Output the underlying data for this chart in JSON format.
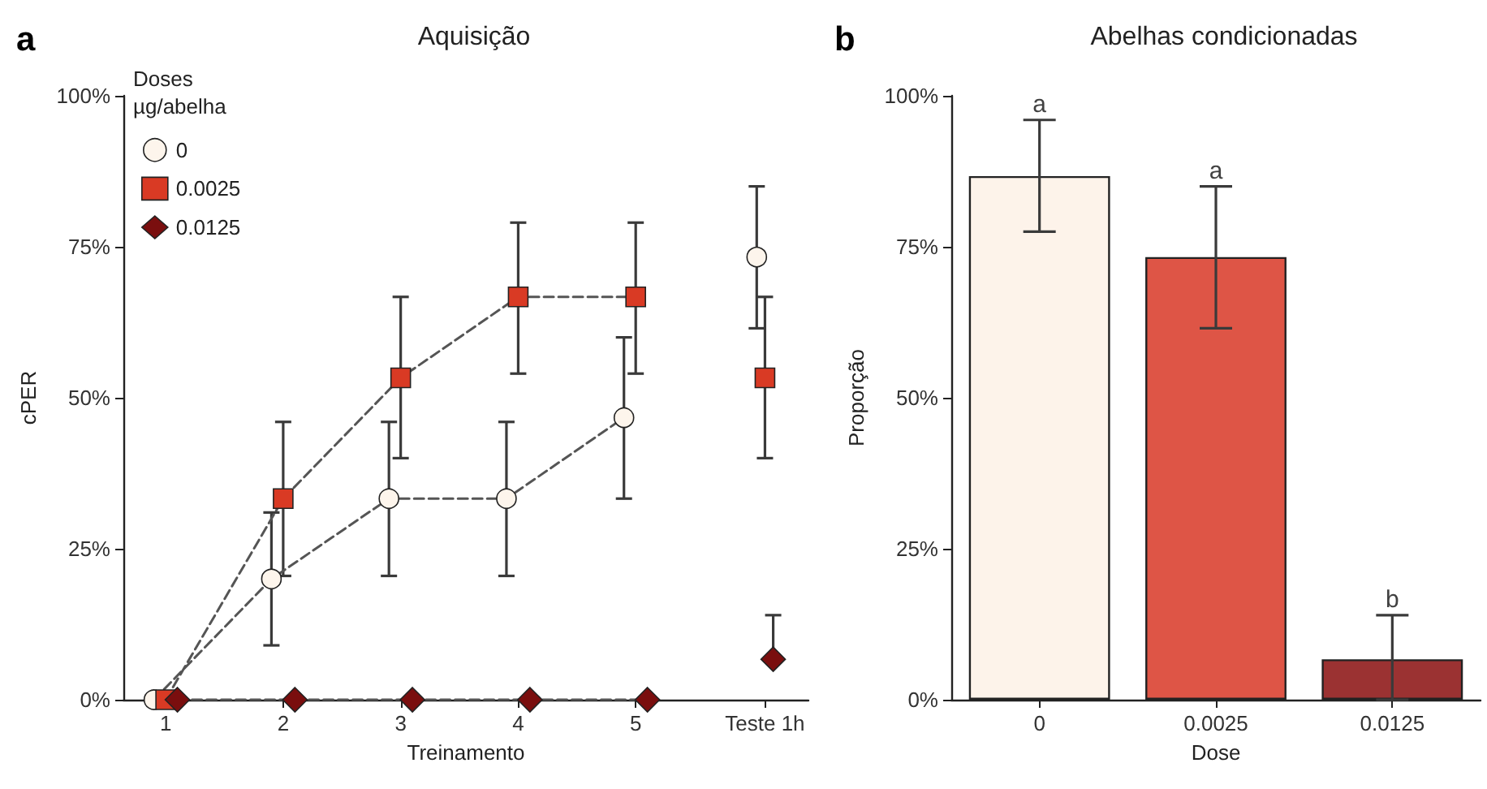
{
  "chart_data": [
    {
      "type": "line",
      "title": "Aquisição",
      "xlabel": "Treinamento",
      "ylabel": "cPER",
      "legend_title": "Doses\nµg/abelha",
      "annotations": [
        "a"
      ],
      "xlim": [
        0.64,
        6.47
      ],
      "xticks": [
        1,
        2,
        3,
        4,
        5,
        {
          "value": 6.1,
          "label": "Teste 1h"
        }
      ],
      "ylim": [
        0,
        100
      ],
      "yticks": [
        {
          "value": 0,
          "label": "0%"
        },
        {
          "value": 25,
          "label": "25%"
        },
        {
          "value": 50,
          "label": "50%"
        },
        {
          "value": 75,
          "label": "75%"
        },
        {
          "value": 100,
          "label": "100%"
        }
      ],
      "grid": false,
      "legend": "top left",
      "line_style": "dashed",
      "series": [
        {
          "name": "0",
          "color": "#fdf5ec",
          "marker": "circle",
          "x": [
            0.9,
            1.9,
            2.9,
            3.9,
            4.9,
            5.55,
            6.03
          ],
          "values": [
            0,
            20,
            33.3,
            33.3,
            46.7,
            null,
            73.3
          ],
          "errors": [
            null,
            [
              9,
              31
            ],
            [
              20.5,
              46
            ],
            [
              20.5,
              46
            ],
            [
              33.3,
              60
            ],
            null,
            [
              61.5,
              85
            ]
          ]
        },
        {
          "name": "0.0025",
          "color": "#d93a24",
          "marker": "square",
          "x": [
            1,
            2,
            3,
            4,
            5,
            5.55,
            6.1
          ],
          "values": [
            0,
            33.3,
            53.3,
            66.7,
            66.7,
            null,
            53.3
          ],
          "errors": [
            null,
            [
              20.5,
              46
            ],
            [
              40,
              66.7
            ],
            [
              54,
              79
            ],
            [
              54,
              79
            ],
            null,
            [
              40,
              66.7
            ]
          ]
        },
        {
          "name": "0.0125",
          "color": "#7a0e0e",
          "marker": "diamond",
          "x": [
            1.1,
            2.1,
            3.1,
            4.1,
            5.1,
            5.55,
            6.17
          ],
          "values": [
            0,
            0,
            0,
            0,
            0,
            null,
            6.7
          ],
          "errors": [
            null,
            null,
            null,
            null,
            null,
            null,
            [
              6.7,
              14
            ]
          ]
        }
      ]
    },
    {
      "type": "bar",
      "title": "Abelhas condicionadas",
      "xlabel": "Dose",
      "ylabel": "Proporção",
      "categories": [
        "0",
        "0.0025",
        "0.0125"
      ],
      "values": [
        86.7,
        73.3,
        6.7
      ],
      "colors": [
        "#fdf3ea",
        "#de5546",
        "#9b3232"
      ],
      "errors": [
        [
          77.5,
          96
        ],
        [
          61.5,
          85
        ],
        [
          0,
          14
        ]
      ],
      "ylim": [
        0,
        100
      ],
      "yticks": [
        {
          "value": 0,
          "label": "0%"
        },
        {
          "value": 25,
          "label": "25%"
        },
        {
          "value": 50,
          "label": "50%"
        },
        {
          "value": 75,
          "label": "75%"
        },
        {
          "value": 100,
          "label": "100%"
        }
      ],
      "grid": false,
      "annotations": [
        "b",
        {
          "text": "a",
          "x": "0",
          "y": 96
        },
        {
          "text": "a",
          "x": "0.0025",
          "y": 85
        },
        {
          "text": "b",
          "x": "0.0125",
          "y": 14
        }
      ]
    }
  ]
}
